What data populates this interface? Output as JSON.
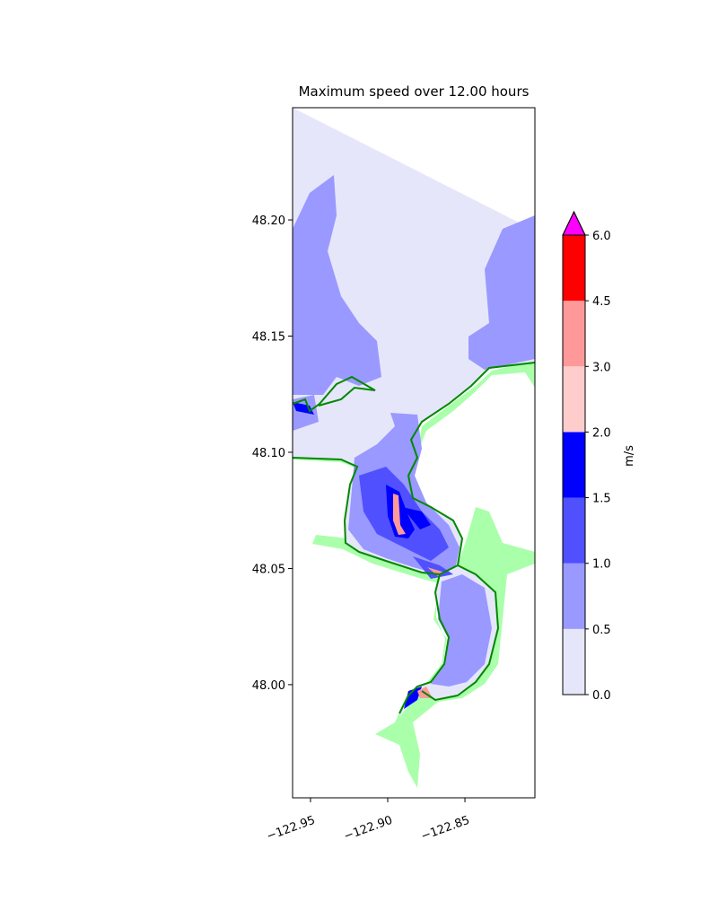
{
  "chart_data": {
    "type": "contour",
    "title": "Maximum speed over 12.00 hours",
    "xlim": [
      -122.9616,
      -122.8047
    ],
    "ylim": [
      47.9513,
      48.2483
    ],
    "xticks": [
      {
        "value": -122.95,
        "label": "−122.95"
      },
      {
        "value": -122.9,
        "label": "−122.90"
      },
      {
        "value": -122.85,
        "label": "−122.85"
      }
    ],
    "yticks": [
      {
        "value": 48.0,
        "label": "48.00"
      },
      {
        "value": 48.05,
        "label": "48.05"
      },
      {
        "value": 48.1,
        "label": "48.10"
      },
      {
        "value": 48.15,
        "label": "48.15"
      },
      {
        "value": 48.2,
        "label": "48.20"
      }
    ],
    "colorbar": {
      "label": "m/s",
      "levels": [
        {
          "value": 0,
          "label": "0.0"
        },
        {
          "value": 0.5,
          "label": "0.5"
        },
        {
          "value": 1,
          "label": "1.0"
        },
        {
          "value": 1.5,
          "label": "1.5"
        },
        {
          "value": 2,
          "label": "2.0"
        },
        {
          "value": 3,
          "label": "3.0"
        },
        {
          "value": 4.5,
          "label": "4.5"
        },
        {
          "value": 6,
          "label": "6.0"
        }
      ],
      "colors": [
        "#e6e6fa",
        "#9999ff",
        "#5050ff",
        "#0000ff",
        "#ffcccc",
        "#ff9999",
        "#ff0000"
      ],
      "extend_color": "#ff00ff"
    }
  }
}
